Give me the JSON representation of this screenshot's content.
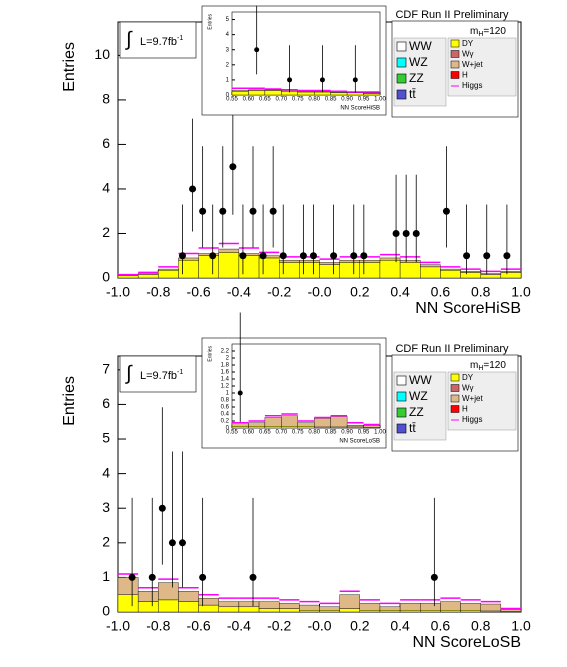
{
  "chart_data": [
    {
      "type": "stacked_histogram",
      "header": "CDF Run II Preliminary",
      "mass_label": [
        "m",
        "H",
        "=120"
      ],
      "lumi": [
        "∫",
        "L=9.7fb",
        "-1"
      ],
      "xlabel": "NN ScoreHiSB",
      "ylabel": "Entries",
      "xlim": [
        -1,
        1
      ],
      "ylim": [
        0,
        11.5
      ],
      "xticks": [
        {
          "value": -1,
          "label": "-1.0"
        },
        -0.8,
        -0.6,
        -0.4,
        -0.2,
        {
          "value": 0,
          "label": "-0.0"
        },
        0.2,
        0.4,
        0.6,
        0.8,
        {
          "value": 1,
          "label": "1.0"
        }
      ],
      "yticks": [
        0,
        2,
        4,
        6,
        8,
        10
      ],
      "bins": [
        -1,
        -0.9,
        -0.8,
        -0.7,
        -0.6,
        -0.5,
        -0.4,
        -0.3,
        -0.2,
        -0.1,
        0,
        0.1,
        0.2,
        0.3,
        0.4,
        0.5,
        0.6,
        0.7,
        0.8,
        0.9,
        1
      ],
      "series": [
        {
          "name": "DY",
          "color": "#ffff00",
          "values": [
            0.1,
            0.15,
            0.35,
            0.8,
            1.0,
            1.15,
            1.0,
            0.9,
            0.7,
            0.7,
            0.6,
            0.7,
            0.7,
            0.8,
            0.7,
            0.5,
            0.35,
            0.25,
            0.15,
            0.25
          ]
        },
        {
          "name": "W+jet",
          "color": "#deb887",
          "values": [
            0,
            0.05,
            0.05,
            0.1,
            0.1,
            0.15,
            0.1,
            0.1,
            0.1,
            0.1,
            0.1,
            0.1,
            0.1,
            0.1,
            0.1,
            0.1,
            0.05,
            0.05,
            0.05,
            0.05
          ]
        }
      ],
      "signal": {
        "name": "Higgs",
        "color": "#ff00ff",
        "values": [
          0.15,
          0.25,
          0.5,
          1.1,
          1.35,
          1.55,
          1.35,
          1.15,
          0.95,
          0.95,
          0.85,
          0.95,
          0.95,
          1.05,
          0.95,
          0.7,
          0.5,
          0.4,
          0.3,
          0.4
        ]
      },
      "legend_left": [
        {
          "name": "WW",
          "color": "#ffffff"
        },
        {
          "name": "WZ",
          "color": "#00ffff"
        },
        {
          "name": "ZZ",
          "color": "#33cc33"
        },
        {
          "name": "tt̄",
          "color": "#5050d0"
        }
      ],
      "legend_right": [
        {
          "name": "Wγ",
          "color": "#cc6666"
        },
        {
          "name": "H",
          "color": "#ff0000"
        }
      ],
      "points": {
        "x": [
          -0.68,
          -0.63,
          -0.58,
          -0.53,
          -0.48,
          -0.43,
          -0.38,
          -0.33,
          -0.28,
          -0.23,
          -0.18,
          -0.08,
          -0.03,
          0.07,
          0.17,
          0.22,
          0.38,
          0.43,
          0.48,
          0.63,
          0.73,
          0.83,
          0.93
        ],
        "values": [
          1,
          4,
          3,
          1,
          3,
          5,
          1,
          3,
          1,
          3,
          1,
          1,
          1,
          1,
          1,
          1,
          2,
          2,
          2,
          3,
          1,
          1,
          1
        ],
        "err_low": [
          0.83,
          1.91,
          1.63,
          0.83,
          1.63,
          2.16,
          0.83,
          1.63,
          0.83,
          1.63,
          0.83,
          0.83,
          0.83,
          0.83,
          0.83,
          0.83,
          1.29,
          1.29,
          1.29,
          1.63,
          0.83,
          0.83,
          0.83
        ],
        "err_high": [
          2.3,
          3.16,
          2.92,
          2.3,
          2.92,
          3.38,
          2.3,
          2.92,
          2.3,
          2.92,
          2.3,
          2.3,
          2.3,
          2.3,
          2.3,
          2.3,
          2.64,
          2.64,
          2.64,
          2.92,
          2.3,
          2.3,
          2.3
        ]
      },
      "inset": {
        "xlabel": "NN ScoreHiSB",
        "ylabel": "Entries",
        "xlim": [
          0.55,
          1
        ],
        "ylim": [
          0,
          5.5
        ],
        "xticks": [
          0.55,
          {
            "value": 0.6,
            "label": "0.60"
          },
          0.65,
          {
            "value": 0.7,
            "label": "0.70"
          },
          0.75,
          {
            "value": 0.8,
            "label": "0.80"
          },
          0.85,
          {
            "value": 0.9,
            "label": "0.90"
          },
          0.95,
          {
            "value": 1,
            "label": "1.00"
          }
        ],
        "yticks": [
          0,
          1,
          2,
          3,
          4,
          5
        ],
        "bins": [
          0.55,
          0.6,
          0.65,
          0.7,
          0.75,
          0.8,
          0.85,
          0.9,
          0.95,
          1
        ],
        "stack": [
          [
            0.25,
            0.3,
            0.3,
            0.25,
            0.2,
            0.2,
            0.15,
            0.15,
            0.1
          ],
          [
            0.05,
            0.05,
            0.05,
            0.05,
            0.05,
            0.05,
            0.05,
            0.05,
            0.05
          ]
        ],
        "signal": [
          0.45,
          0.45,
          0.4,
          0.35,
          0.3,
          0.3,
          0.25,
          0.2,
          0.2
        ],
        "points": {
          "x": [
            0.625,
            0.725,
            0.825,
            0.925
          ],
          "values": [
            3,
            1,
            1,
            1
          ],
          "err_low": [
            1.63,
            0.83,
            0.83,
            0.83
          ],
          "err_high": [
            2.92,
            2.3,
            2.3,
            2.3
          ]
        }
      }
    },
    {
      "type": "stacked_histogram",
      "header": "CDF Run II Preliminary",
      "mass_label": [
        "m",
        "H",
        "=120"
      ],
      "lumi": [
        "∫",
        "L=9.7fb",
        "-1"
      ],
      "xlabel": "NN ScoreLoSB",
      "ylabel": "Entries",
      "xlim": [
        -1,
        1
      ],
      "ylim": [
        0,
        7.4
      ],
      "xticks": [
        {
          "value": -1,
          "label": "-1.0"
        },
        -0.8,
        -0.6,
        -0.4,
        -0.2,
        {
          "value": 0,
          "label": "-0.0"
        },
        0.2,
        0.4,
        0.6,
        0.8,
        {
          "value": 1,
          "label": "1.0"
        }
      ],
      "yticks": [
        0,
        1,
        2,
        3,
        4,
        5,
        6,
        7
      ],
      "bins": [
        -1,
        -0.9,
        -0.8,
        -0.7,
        -0.6,
        -0.5,
        -0.4,
        -0.3,
        -0.2,
        -0.1,
        0,
        0.1,
        0.2,
        0.3,
        0.4,
        0.5,
        0.6,
        0.7,
        0.8,
        0.9,
        1
      ],
      "series": [
        {
          "name": "DY",
          "color": "#ffff00",
          "values": [
            0.5,
            0.3,
            0.35,
            0.3,
            0.2,
            0.15,
            0.15,
            0.1,
            0.1,
            0.05,
            0.05,
            0.1,
            0.05,
            0.05,
            0.05,
            0.05,
            0.05,
            0.05,
            0.03,
            0.02
          ]
        },
        {
          "name": "W+jet",
          "color": "#deb887",
          "values": [
            0.5,
            0.3,
            0.5,
            0.3,
            0.2,
            0.15,
            0.15,
            0.2,
            0.15,
            0.15,
            0.1,
            0.4,
            0.2,
            0.1,
            0.2,
            0.2,
            0.25,
            0.2,
            0.2,
            0.05
          ]
        }
      ],
      "signal": {
        "name": "Higgs",
        "color": "#ff00ff",
        "values": [
          1.1,
          0.7,
          0.95,
          0.7,
          0.5,
          0.4,
          0.4,
          0.4,
          0.35,
          0.3,
          0.25,
          0.6,
          0.35,
          0.25,
          0.35,
          0.35,
          0.4,
          0.35,
          0.3,
          0.1
        ]
      },
      "legend_left": [
        {
          "name": "WW",
          "color": "#ffffff"
        },
        {
          "name": "WZ",
          "color": "#00ffff"
        },
        {
          "name": "ZZ",
          "color": "#33cc33"
        },
        {
          "name": "tt̄",
          "color": "#5050d0"
        }
      ],
      "legend_right": [
        {
          "name": "Wγ",
          "color": "#cc6666"
        },
        {
          "name": "H",
          "color": "#ff0000"
        }
      ],
      "points": {
        "x": [
          -0.93,
          -0.83,
          -0.78,
          -0.73,
          -0.68,
          -0.58,
          -0.33,
          0.57
        ],
        "values": [
          1,
          1,
          3,
          2,
          2,
          1,
          1,
          1
        ],
        "err_low": [
          0.83,
          0.83,
          1.63,
          1.29,
          1.29,
          0.83,
          0.83,
          0.83
        ],
        "err_high": [
          2.3,
          2.3,
          2.92,
          2.64,
          2.64,
          2.3,
          2.3,
          2.3
        ]
      },
      "inset": {
        "xlabel": "NN ScoreLoSB",
        "ylabel": "Entries",
        "xlim": [
          0.55,
          1
        ],
        "ylim": [
          0,
          2.4
        ],
        "xticks": [
          0.55,
          {
            "value": 0.6,
            "label": "0.60"
          },
          0.65,
          {
            "value": 0.7,
            "label": "0.70"
          },
          0.75,
          {
            "value": 0.8,
            "label": "0.80"
          },
          0.85,
          {
            "value": 0.9,
            "label": "0.90"
          },
          0.95,
          {
            "value": 1,
            "label": "1.00"
          }
        ],
        "yticks": [
          0,
          0.2,
          0.4,
          0.6,
          0.8,
          1,
          1.2,
          1.4,
          1.6,
          1.8,
          2,
          2.2
        ],
        "bins": [
          0.55,
          0.6,
          0.65,
          0.7,
          0.75,
          0.8,
          0.85,
          0.9,
          0.95,
          1
        ],
        "stack": [
          [
            0.05,
            0.05,
            0.05,
            0.05,
            0.05,
            0.03,
            0.03,
            0.03,
            0.02
          ],
          [
            0.1,
            0.1,
            0.25,
            0.3,
            0.1,
            0.25,
            0.3,
            0.05,
            0.05
          ]
        ],
        "signal": [
          0.15,
          0.2,
          0.35,
          0.4,
          0.2,
          0.3,
          0.35,
          0.15,
          0.1
        ],
        "points": {
          "x": [
            0.575
          ],
          "values": [
            1
          ],
          "err_low": [
            0.83
          ],
          "err_high": [
            2.3
          ]
        }
      }
    }
  ]
}
